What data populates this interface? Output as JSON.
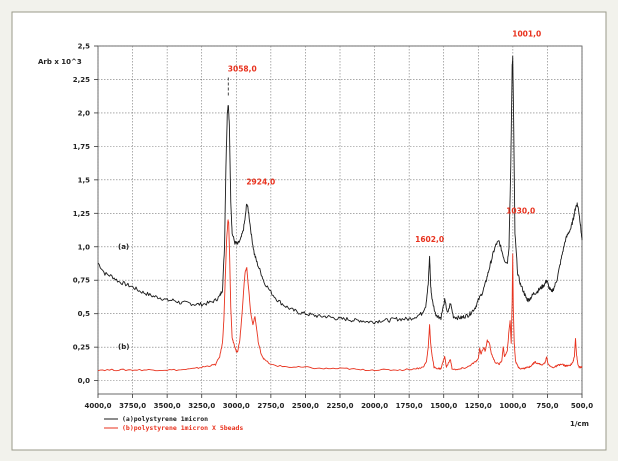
{
  "chart_data": {
    "type": "line",
    "title": "",
    "ylabel": "Arb x 10^3",
    "xlabel": "1/cm",
    "xlim": [
      4000,
      500
    ],
    "ylim": [
      -0.1,
      2.5
    ],
    "x_ticks": [
      {
        "value": 4000,
        "label": "4000,0"
      },
      {
        "value": 3750,
        "label": "3750,0"
      },
      {
        "value": 3500,
        "label": "3500,0"
      },
      {
        "value": 3250,
        "label": "3250,0"
      },
      {
        "value": 3000,
        "label": "3000,0"
      },
      {
        "value": 2750,
        "label": "2750,0"
      },
      {
        "value": 2500,
        "label": "2500,0"
      },
      {
        "value": 2250,
        "label": "2250,0"
      },
      {
        "value": 2000,
        "label": "2000,0"
      },
      {
        "value": 1750,
        "label": "1750,0"
      },
      {
        "value": 1500,
        "label": "1500,0"
      },
      {
        "value": 1250,
        "label": "1250,0"
      },
      {
        "value": 1000,
        "label": "1000,0"
      },
      {
        "value": 750,
        "label": "750,0"
      },
      {
        "value": 500,
        "label": "500,0"
      }
    ],
    "y_ticks": [
      {
        "value": 2.5,
        "label": "2,5"
      },
      {
        "value": 2.25,
        "label": "2,25"
      },
      {
        "value": 2.0,
        "label": "2,0"
      },
      {
        "value": 1.75,
        "label": "1,75"
      },
      {
        "value": 1.5,
        "label": "1,5"
      },
      {
        "value": 1.25,
        "label": "1,25"
      },
      {
        "value": 1.0,
        "label": "1,0"
      },
      {
        "value": 0.75,
        "label": "0,75"
      },
      {
        "value": 0.5,
        "label": "0,5"
      },
      {
        "value": 0.25,
        "label": "0,25"
      },
      {
        "value": 0.0,
        "label": "0,0"
      }
    ],
    "grid": true,
    "legend_position": "bottom-left",
    "series_tags": [
      {
        "text": "(a)",
        "y": 1.0
      },
      {
        "text": "(b)",
        "y": 0.25
      }
    ],
    "series": [
      {
        "name": "(a)polystyrene 1micron",
        "color": "#1a1a1a",
        "points": [
          [
            4000,
            0.88
          ],
          [
            3950,
            0.8
          ],
          [
            3900,
            0.78
          ],
          [
            3850,
            0.74
          ],
          [
            3800,
            0.72
          ],
          [
            3750,
            0.7
          ],
          [
            3700,
            0.67
          ],
          [
            3650,
            0.65
          ],
          [
            3600,
            0.63
          ],
          [
            3550,
            0.62
          ],
          [
            3500,
            0.6
          ],
          [
            3450,
            0.6
          ],
          [
            3400,
            0.58
          ],
          [
            3350,
            0.58
          ],
          [
            3300,
            0.57
          ],
          [
            3250,
            0.57
          ],
          [
            3200,
            0.58
          ],
          [
            3150,
            0.6
          ],
          [
            3120,
            0.63
          ],
          [
            3100,
            0.68
          ],
          [
            3085,
            1.0
          ],
          [
            3075,
            1.6
          ],
          [
            3065,
            2.0
          ],
          [
            3058,
            2.07
          ],
          [
            3050,
            1.9
          ],
          [
            3040,
            1.35
          ],
          [
            3030,
            1.1
          ],
          [
            3010,
            1.03
          ],
          [
            2990,
            1.02
          ],
          [
            2970,
            1.05
          ],
          [
            2950,
            1.12
          ],
          [
            2935,
            1.22
          ],
          [
            2924,
            1.33
          ],
          [
            2910,
            1.25
          ],
          [
            2890,
            1.08
          ],
          [
            2870,
            0.95
          ],
          [
            2850,
            0.88
          ],
          [
            2820,
            0.8
          ],
          [
            2800,
            0.74
          ],
          [
            2750,
            0.66
          ],
          [
            2700,
            0.6
          ],
          [
            2650,
            0.56
          ],
          [
            2600,
            0.53
          ],
          [
            2550,
            0.51
          ],
          [
            2500,
            0.5
          ],
          [
            2450,
            0.49
          ],
          [
            2400,
            0.48
          ],
          [
            2350,
            0.48
          ],
          [
            2300,
            0.47
          ],
          [
            2250,
            0.46
          ],
          [
            2200,
            0.46
          ],
          [
            2150,
            0.45
          ],
          [
            2100,
            0.45
          ],
          [
            2050,
            0.44
          ],
          [
            2000,
            0.44
          ],
          [
            1950,
            0.45
          ],
          [
            1900,
            0.45
          ],
          [
            1850,
            0.46
          ],
          [
            1800,
            0.46
          ],
          [
            1750,
            0.46
          ],
          [
            1700,
            0.48
          ],
          [
            1660,
            0.5
          ],
          [
            1630,
            0.56
          ],
          [
            1612,
            0.72
          ],
          [
            1602,
            0.93
          ],
          [
            1594,
            0.7
          ],
          [
            1583,
            0.6
          ],
          [
            1560,
            0.5
          ],
          [
            1540,
            0.48
          ],
          [
            1520,
            0.47
          ],
          [
            1493,
            0.6
          ],
          [
            1470,
            0.5
          ],
          [
            1452,
            0.58
          ],
          [
            1430,
            0.48
          ],
          [
            1400,
            0.47
          ],
          [
            1370,
            0.47
          ],
          [
            1350,
            0.48
          ],
          [
            1320,
            0.49
          ],
          [
            1300,
            0.51
          ],
          [
            1270,
            0.55
          ],
          [
            1250,
            0.6
          ],
          [
            1220,
            0.66
          ],
          [
            1200,
            0.72
          ],
          [
            1180,
            0.8
          ],
          [
            1160,
            0.88
          ],
          [
            1140,
            0.96
          ],
          [
            1120,
            1.02
          ],
          [
            1100,
            1.04
          ],
          [
            1080,
            0.97
          ],
          [
            1060,
            0.9
          ],
          [
            1040,
            0.88
          ],
          [
            1028,
            1.0
          ],
          [
            1015,
            1.6
          ],
          [
            1005,
            2.35
          ],
          [
            1001,
            2.42
          ],
          [
            995,
            2.0
          ],
          [
            985,
            1.1
          ],
          [
            965,
            0.8
          ],
          [
            945,
            0.72
          ],
          [
            920,
            0.66
          ],
          [
            905,
            0.62
          ],
          [
            890,
            0.6
          ],
          [
            870,
            0.62
          ],
          [
            850,
            0.65
          ],
          [
            830,
            0.66
          ],
          [
            810,
            0.68
          ],
          [
            790,
            0.7
          ],
          [
            770,
            0.72
          ],
          [
            755,
            0.75
          ],
          [
            740,
            0.7
          ],
          [
            720,
            0.66
          ],
          [
            700,
            0.7
          ],
          [
            680,
            0.76
          ],
          [
            660,
            0.86
          ],
          [
            640,
            0.96
          ],
          [
            620,
            1.05
          ],
          [
            600,
            1.1
          ],
          [
            580,
            1.14
          ],
          [
            565,
            1.2
          ],
          [
            555,
            1.25
          ],
          [
            545,
            1.3
          ],
          [
            535,
            1.32
          ],
          [
            525,
            1.28
          ],
          [
            515,
            1.2
          ],
          [
            505,
            1.1
          ],
          [
            500,
            1.05
          ]
        ]
      },
      {
        "name": "(b)polystyrene 1micron X 5beads",
        "color": "#e8321e",
        "points": [
          [
            4000,
            0.08
          ],
          [
            3900,
            0.08
          ],
          [
            3800,
            0.08
          ],
          [
            3700,
            0.08
          ],
          [
            3600,
            0.08
          ],
          [
            3500,
            0.08
          ],
          [
            3400,
            0.08
          ],
          [
            3300,
            0.09
          ],
          [
            3250,
            0.1
          ],
          [
            3200,
            0.11
          ],
          [
            3150,
            0.12
          ],
          [
            3120,
            0.18
          ],
          [
            3100,
            0.28
          ],
          [
            3090,
            0.45
          ],
          [
            3080,
            0.75
          ],
          [
            3070,
            1.05
          ],
          [
            3060,
            1.2
          ],
          [
            3055,
            1.18
          ],
          [
            3048,
            0.92
          ],
          [
            3040,
            0.55
          ],
          [
            3030,
            0.32
          ],
          [
            3020,
            0.28
          ],
          [
            3010,
            0.25
          ],
          [
            3000,
            0.22
          ],
          [
            2990,
            0.22
          ],
          [
            2975,
            0.3
          ],
          [
            2960,
            0.48
          ],
          [
            2945,
            0.7
          ],
          [
            2935,
            0.82
          ],
          [
            2924,
            0.84
          ],
          [
            2912,
            0.7
          ],
          [
            2895,
            0.5
          ],
          [
            2880,
            0.42
          ],
          [
            2865,
            0.48
          ],
          [
            2852,
            0.38
          ],
          [
            2840,
            0.28
          ],
          [
            2820,
            0.2
          ],
          [
            2800,
            0.16
          ],
          [
            2750,
            0.12
          ],
          [
            2700,
            0.11
          ],
          [
            2600,
            0.1
          ],
          [
            2500,
            0.1
          ],
          [
            2400,
            0.09
          ],
          [
            2300,
            0.09
          ],
          [
            2200,
            0.09
          ],
          [
            2100,
            0.08
          ],
          [
            2000,
            0.08
          ],
          [
            1900,
            0.08
          ],
          [
            1800,
            0.08
          ],
          [
            1700,
            0.09
          ],
          [
            1650,
            0.1
          ],
          [
            1625,
            0.14
          ],
          [
            1612,
            0.25
          ],
          [
            1602,
            0.42
          ],
          [
            1595,
            0.28
          ],
          [
            1583,
            0.18
          ],
          [
            1570,
            0.1
          ],
          [
            1540,
            0.09
          ],
          [
            1520,
            0.09
          ],
          [
            1493,
            0.18
          ],
          [
            1480,
            0.1
          ],
          [
            1452,
            0.16
          ],
          [
            1440,
            0.09
          ],
          [
            1400,
            0.08
          ],
          [
            1370,
            0.09
          ],
          [
            1330,
            0.1
          ],
          [
            1300,
            0.12
          ],
          [
            1270,
            0.14
          ],
          [
            1250,
            0.16
          ],
          [
            1240,
            0.24
          ],
          [
            1230,
            0.2
          ],
          [
            1210,
            0.25
          ],
          [
            1200,
            0.22
          ],
          [
            1185,
            0.3
          ],
          [
            1170,
            0.28
          ],
          [
            1155,
            0.2
          ],
          [
            1130,
            0.14
          ],
          [
            1100,
            0.12
          ],
          [
            1080,
            0.15
          ],
          [
            1070,
            0.25
          ],
          [
            1060,
            0.18
          ],
          [
            1040,
            0.22
          ],
          [
            1030,
            0.35
          ],
          [
            1020,
            0.45
          ],
          [
            1012,
            0.28
          ],
          [
            1005,
            0.6
          ],
          [
            1001,
            0.95
          ],
          [
            997,
            0.55
          ],
          [
            990,
            0.28
          ],
          [
            980,
            0.14
          ],
          [
            960,
            0.1
          ],
          [
            940,
            0.09
          ],
          [
            920,
            0.09
          ],
          [
            900,
            0.1
          ],
          [
            880,
            0.1
          ],
          [
            860,
            0.12
          ],
          [
            840,
            0.14
          ],
          [
            820,
            0.13
          ],
          [
            800,
            0.12
          ],
          [
            780,
            0.12
          ],
          [
            765,
            0.14
          ],
          [
            755,
            0.18
          ],
          [
            745,
            0.12
          ],
          [
            720,
            0.1
          ],
          [
            700,
            0.1
          ],
          [
            680,
            0.11
          ],
          [
            660,
            0.12
          ],
          [
            640,
            0.12
          ],
          [
            620,
            0.11
          ],
          [
            600,
            0.11
          ],
          [
            580,
            0.12
          ],
          [
            565,
            0.14
          ],
          [
            555,
            0.18
          ],
          [
            547,
            0.32
          ],
          [
            540,
            0.2
          ],
          [
            530,
            0.12
          ],
          [
            520,
            0.1
          ],
          [
            510,
            0.1
          ],
          [
            500,
            0.1
          ]
        ]
      }
    ],
    "peak_labels": [
      {
        "text": "3058,0",
        "x": 3058,
        "y": 2.07,
        "color": "#e8321e"
      },
      {
        "text": "2924,0",
        "x": 2924,
        "y": 1.33,
        "color": "#e8321e"
      },
      {
        "text": "1602,0",
        "x": 1602,
        "y": 0.93,
        "color": "#e8321e"
      },
      {
        "text": "1001,0",
        "x": 1001,
        "y": 2.42,
        "color": "#e8321e"
      },
      {
        "text": "1030,0",
        "x": 1030,
        "y": 0.95,
        "color": "#e8321e"
      }
    ],
    "legend": [
      {
        "series": 0,
        "text": "(a)polystyrene  1micron",
        "color": "#1a1a1a"
      },
      {
        "series": 1,
        "text": "(b)polystyrene  1micron X 5beads",
        "color": "#e8321e"
      }
    ]
  }
}
